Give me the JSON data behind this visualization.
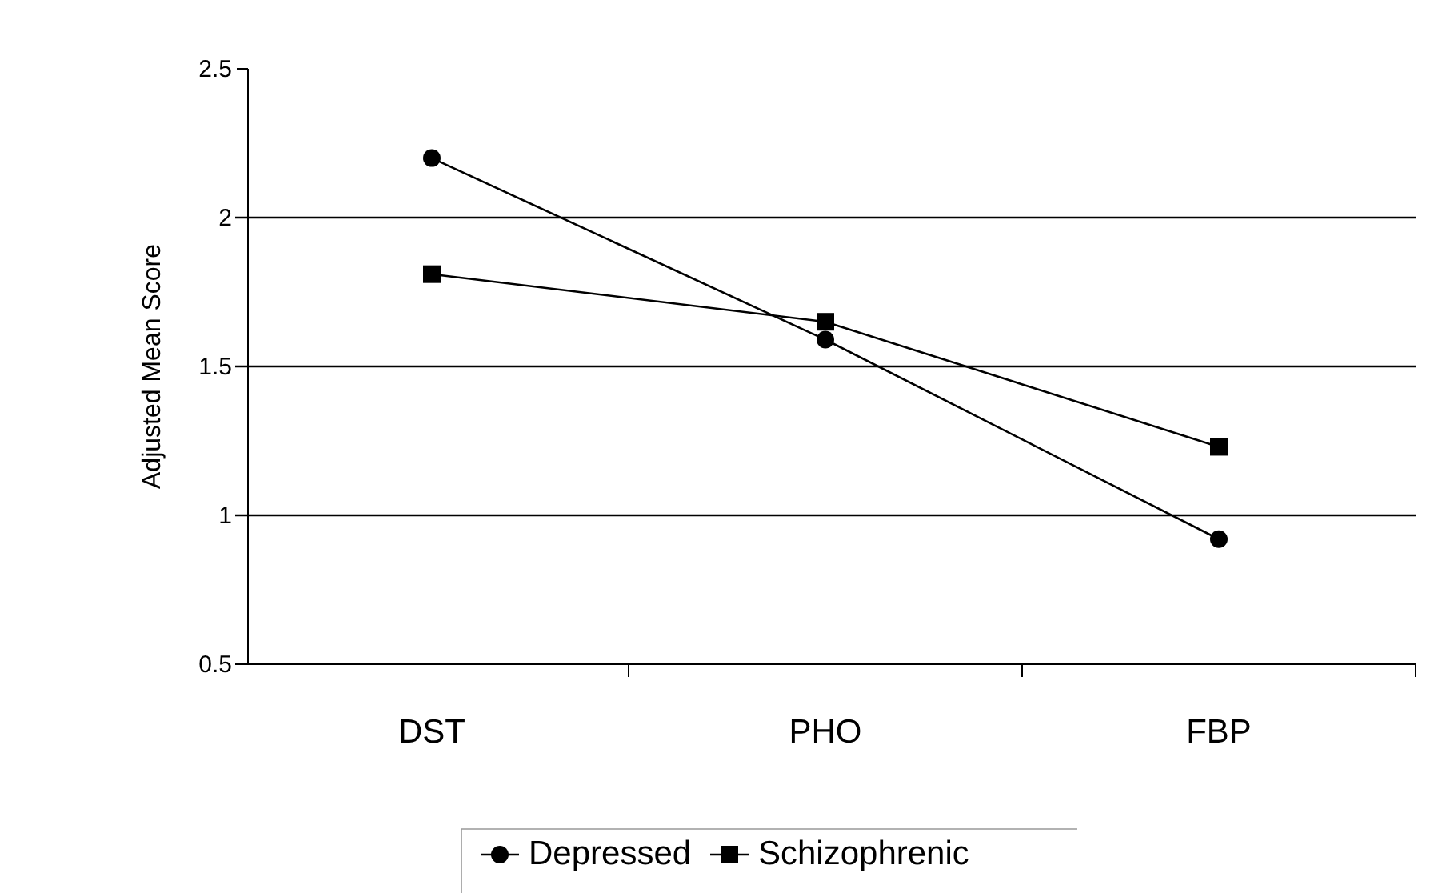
{
  "chart_data": {
    "type": "line",
    "ylabel": "Adjusted Mean Score",
    "categories": [
      "DST",
      "PHO",
      "FBP"
    ],
    "series": [
      {
        "name": "Depressed",
        "color": "#000000",
        "values": [
          2.2,
          1.59,
          0.92
        ],
        "marker": "circle"
      },
      {
        "name": "Schizophrenic",
        "color": "#000000",
        "values": [
          1.81,
          1.65,
          1.23
        ],
        "marker": "square"
      }
    ],
    "ylim": [
      0.5,
      2.5
    ],
    "yticks": [
      0.5,
      1,
      1.5,
      2,
      2.5
    ],
    "grid": "y",
    "legend": "bottom",
    "line_style": "solid"
  }
}
